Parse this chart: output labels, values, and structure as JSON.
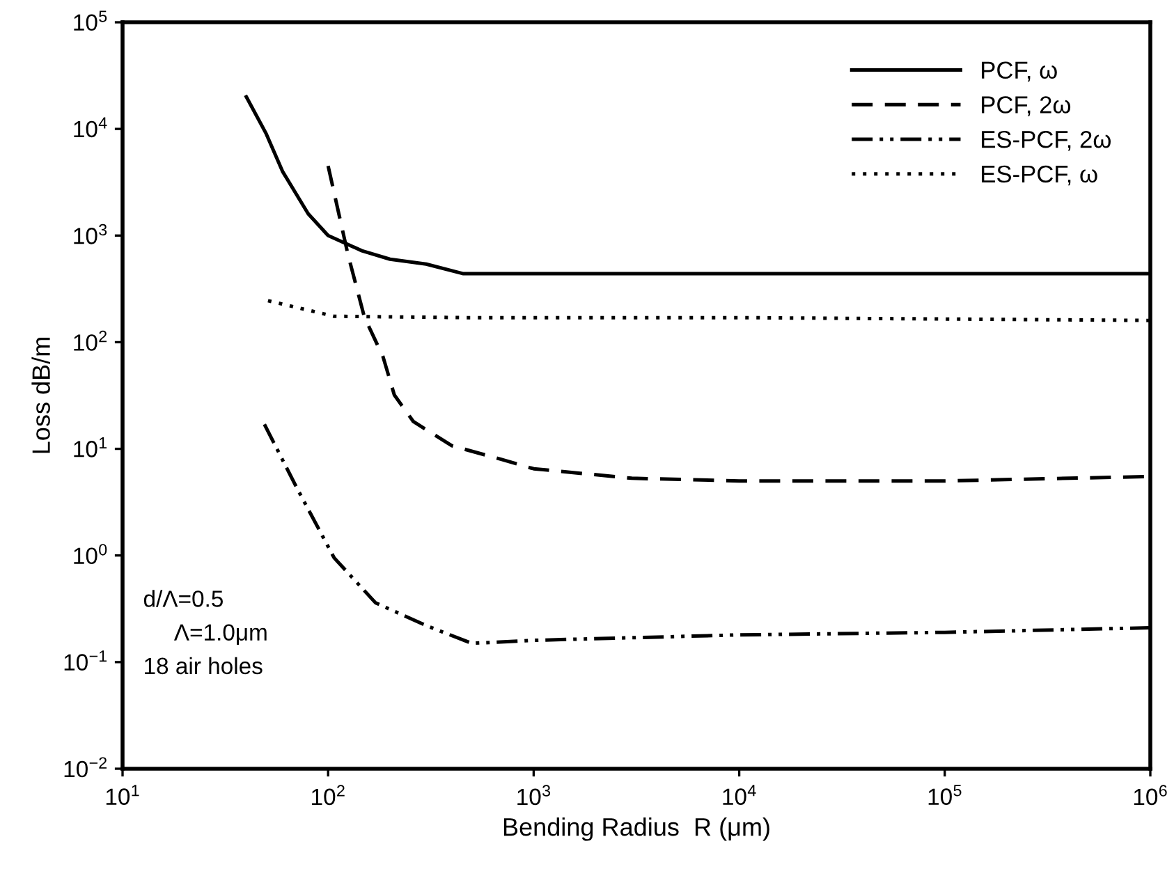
{
  "chart_data": {
    "type": "line",
    "xlabel": "Bending Radius  R (μm)",
    "ylabel": "Loss dB/m",
    "log": "xy",
    "grid": false,
    "legend": "top right",
    "marker": "none",
    "xlim": [
      10,
      1000000
    ],
    "ylim": [
      0.01,
      100000
    ],
    "xticks": [
      {
        "value": 10,
        "label": "10$^{1}$"
      },
      {
        "value": 100,
        "label": "10$^{2}$"
      },
      {
        "value": 1000,
        "label": "10$^{3}$"
      },
      {
        "value": 10000,
        "label": "10$^{4}$"
      },
      {
        "value": 100000,
        "label": "10$^{5}$"
      },
      {
        "value": 1000000,
        "label": "10$^{6}$"
      }
    ],
    "yticks": [
      {
        "value": 0.01,
        "label": "10$^{−2}$"
      },
      {
        "value": 0.1,
        "label": "10$^{−1}$"
      },
      {
        "value": 1,
        "label": "10$^{0}$"
      },
      {
        "value": 10,
        "label": "10$^{1}$"
      },
      {
        "value": 100,
        "label": "10$^{2}$"
      },
      {
        "value": 1000,
        "label": "10$^{3}$"
      },
      {
        "value": 10000,
        "label": "10$^{4}$"
      },
      {
        "value": 100000,
        "label": "10$^{5}$"
      }
    ],
    "series": [
      {
        "name": "PCF, ω",
        "color": "#000000",
        "line_style": "solid",
        "x": [
          40,
          50,
          60,
          80,
          100,
          146,
          200,
          300,
          452,
          600,
          1000,
          10000,
          100000,
          1000000
        ],
        "values": [
          20000,
          9000,
          4000,
          1600,
          1000,
          720,
          600,
          540,
          440,
          440,
          440,
          440,
          440,
          440
        ]
      },
      {
        "name": "PCF, 2ω",
        "color": "#000000",
        "line_style": "dashed",
        "x": [
          100,
          125,
          150,
          185,
          210,
          260,
          400,
          690,
          1000,
          3000,
          10000,
          100000,
          1000000
        ],
        "values": [
          4500,
          660,
          173,
          73,
          32,
          18,
          10.7,
          8,
          6.5,
          5.3,
          5,
          5,
          5.5
        ]
      },
      {
        "name": "ES-PCF, 2ω",
        "color": "#000000",
        "line_style": "dashdotdot",
        "x": [
          49,
          70,
          107,
          170,
          300,
          500,
          1000,
          10000,
          100000,
          1000000
        ],
        "values": [
          17,
          4.4,
          0.95,
          0.36,
          0.22,
          0.15,
          0.16,
          0.18,
          0.19,
          0.21
        ]
      },
      {
        "name": "ES-PCF, ω",
        "color": "#000000",
        "line_style": "dotted",
        "x": [
          51,
          107,
          450,
          10000,
          100000,
          1000000
        ],
        "values": [
          245,
          175,
          170,
          170,
          165,
          160
        ]
      }
    ],
    "annotations": [
      "d/Λ=0.5",
      "Λ=1.0μm",
      "18 air holes"
    ]
  }
}
